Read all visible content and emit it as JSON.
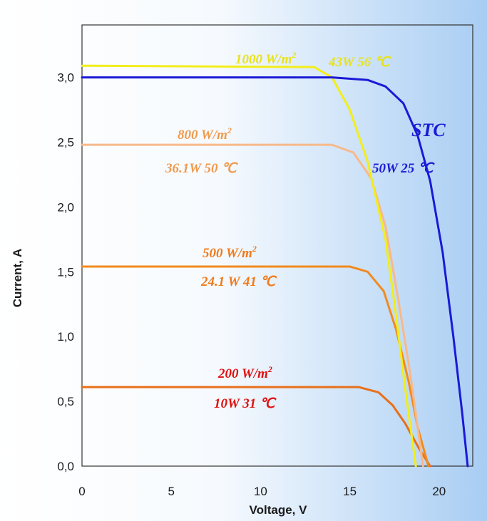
{
  "chart_data": {
    "type": "line",
    "title": "",
    "xlabel": "Voltage, V",
    "ylabel": "Current, A",
    "xlim": [
      0,
      22.5
    ],
    "ylim": [
      0,
      3.35
    ],
    "x_ticks": [
      "0",
      "5",
      "10",
      "15",
      "20"
    ],
    "y_ticks": [
      "0,0",
      "0,5",
      "1,0",
      "1,5",
      "2,0",
      "2,5",
      "3,0"
    ],
    "grid": false,
    "colors": {
      "stc": "#1a1ad6",
      "irr1000": "#f2ee1a",
      "irr800": "#f7b98a",
      "irr500": "#f28a1e",
      "irr200": "#e8701a"
    },
    "series": [
      {
        "id": "stc",
        "values": [
          [
            0,
            3.0
          ],
          [
            14,
            3.0
          ],
          [
            16,
            2.98
          ],
          [
            17,
            2.93
          ],
          [
            18,
            2.8
          ],
          [
            18.8,
            2.55
          ],
          [
            19.5,
            2.2
          ],
          [
            20.2,
            1.65
          ],
          [
            20.8,
            1.0
          ],
          [
            21.3,
            0.4
          ],
          [
            21.6,
            0.0
          ]
        ]
      },
      {
        "id": "irr1000",
        "values": [
          [
            0,
            3.09
          ],
          [
            13,
            3.08
          ],
          [
            14,
            3.0
          ],
          [
            15,
            2.75
          ],
          [
            16,
            2.35
          ],
          [
            17,
            1.75
          ],
          [
            17.6,
            1.15
          ],
          [
            18.1,
            0.6
          ],
          [
            18.7,
            0.0
          ]
        ]
      },
      {
        "id": "irr800",
        "values": [
          [
            0,
            2.48
          ],
          [
            14,
            2.48
          ],
          [
            15.2,
            2.42
          ],
          [
            16.2,
            2.22
          ],
          [
            17,
            1.85
          ],
          [
            17.7,
            1.3
          ],
          [
            18.4,
            0.7
          ],
          [
            19.1,
            0.0
          ]
        ]
      },
      {
        "id": "irr500",
        "values": [
          [
            0,
            1.54
          ],
          [
            15,
            1.54
          ],
          [
            16,
            1.5
          ],
          [
            16.9,
            1.35
          ],
          [
            17.6,
            1.05
          ],
          [
            18.3,
            0.65
          ],
          [
            18.8,
            0.3
          ],
          [
            19.4,
            0.0
          ]
        ]
      },
      {
        "id": "irr200",
        "values": [
          [
            0,
            0.61
          ],
          [
            15.5,
            0.61
          ],
          [
            16.6,
            0.57
          ],
          [
            17.4,
            0.47
          ],
          [
            18.1,
            0.33
          ],
          [
            18.9,
            0.13
          ],
          [
            19.5,
            0.0
          ]
        ]
      }
    ],
    "annotations": {
      "irr1000_irradiance": "1000 W/m",
      "irr1000_params": "43W 56 ℃",
      "stc_name": "STC",
      "stc_params": "50W  25 ℃",
      "irr800_irradiance": "800 W/m",
      "irr800_params": "36.1W 50 ℃",
      "irr500_irradiance": "500 W/m",
      "irr500_params": "24.1 W 41 ℃",
      "irr200_irradiance": "200 W/m",
      "irr200_params": "10W  31 ℃",
      "superscript": "2"
    }
  }
}
